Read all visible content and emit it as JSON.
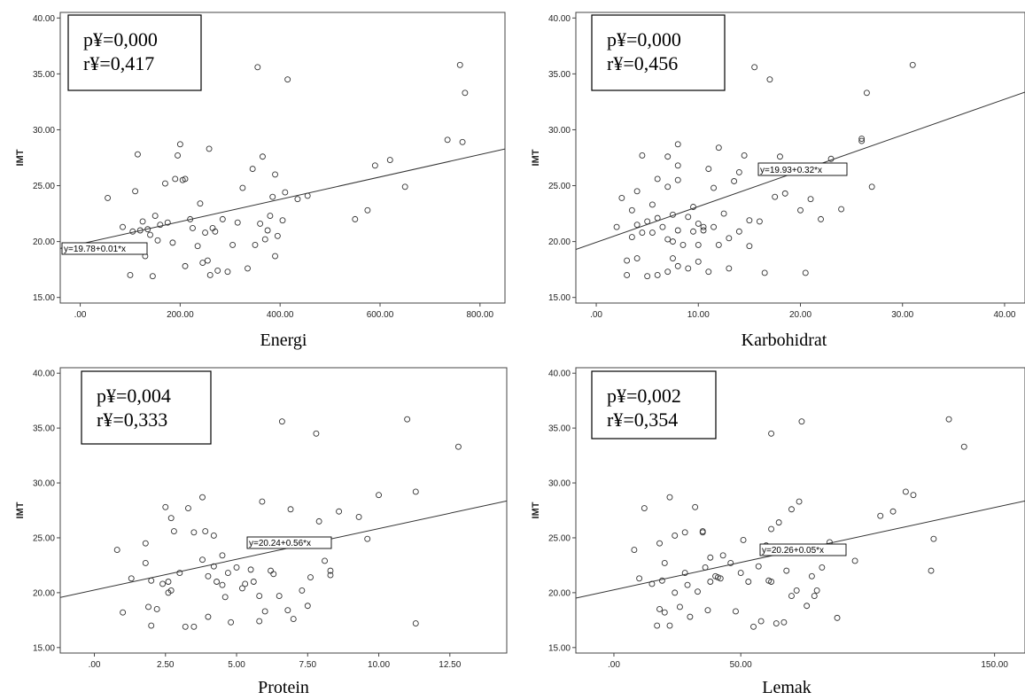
{
  "chart_data": [
    {
      "type": "scatter",
      "xlabel": "Energi",
      "ylabel": "IMT",
      "stat_p": "p¥=0,000",
      "stat_r": "r¥=0,417",
      "equation": "y=19.78+0.01*x",
      "fit": {
        "intercept": 19.78,
        "slope": 0.01
      },
      "xlim": [
        -40,
        850
      ],
      "ylim": [
        14.5,
        40.5
      ],
      "xticks": [
        0,
        200,
        400,
        600,
        800
      ],
      "xtick_labels": [
        ".00",
        "200.00",
        "400.00",
        "600.00",
        "800.00"
      ],
      "yticks": [
        15,
        20,
        25,
        30,
        35,
        40
      ],
      "ytick_labels": [
        "15.00",
        "20.00",
        "25.00",
        "30.00",
        "35.00",
        "40.00"
      ],
      "points": [
        [
          55,
          23.9
        ],
        [
          85,
          21.3
        ],
        [
          100,
          17
        ],
        [
          105,
          20.9
        ],
        [
          110,
          24.5
        ],
        [
          115,
          27.8
        ],
        [
          120,
          21
        ],
        [
          125,
          21.8
        ],
        [
          130,
          18.7
        ],
        [
          135,
          21.1
        ],
        [
          145,
          16.9
        ],
        [
          140,
          20.6
        ],
        [
          150,
          22.3
        ],
        [
          155,
          20.1
        ],
        [
          160,
          21.5
        ],
        [
          170,
          25.2
        ],
        [
          175,
          21.7
        ],
        [
          185,
          19.9
        ],
        [
          190,
          25.6
        ],
        [
          195,
          27.7
        ],
        [
          200,
          28.7
        ],
        [
          205,
          25.5
        ],
        [
          210,
          17.8
        ],
        [
          210,
          25.6
        ],
        [
          220,
          22
        ],
        [
          225,
          21.2
        ],
        [
          235,
          19.6
        ],
        [
          240,
          23.4
        ],
        [
          245,
          18.1
        ],
        [
          250,
          20.8
        ],
        [
          255,
          18.3
        ],
        [
          258,
          28.3
        ],
        [
          260,
          17
        ],
        [
          265,
          21.2
        ],
        [
          270,
          20.9
        ],
        [
          275,
          17.4
        ],
        [
          285,
          22
        ],
        [
          295,
          17.3
        ],
        [
          305,
          19.7
        ],
        [
          315,
          21.7
        ],
        [
          325,
          24.8
        ],
        [
          335,
          17.6
        ],
        [
          345,
          26.5
        ],
        [
          350,
          19.7
        ],
        [
          355,
          35.6
        ],
        [
          360,
          21.6
        ],
        [
          365,
          27.6
        ],
        [
          370,
          20.2
        ],
        [
          375,
          21
        ],
        [
          380,
          22.3
        ],
        [
          385,
          24
        ],
        [
          390,
          18.7
        ],
        [
          390,
          26
        ],
        [
          395,
          20.5
        ],
        [
          405,
          21.9
        ],
        [
          410,
          24.4
        ],
        [
          415,
          34.5
        ],
        [
          435,
          23.8
        ],
        [
          455,
          24.1
        ],
        [
          550,
          22
        ],
        [
          575,
          22.8
        ],
        [
          590,
          26.8
        ],
        [
          620,
          27.3
        ],
        [
          650,
          24.9
        ],
        [
          735,
          29.1
        ],
        [
          760,
          35.8
        ],
        [
          765,
          28.9
        ],
        [
          770,
          33.3
        ]
      ]
    },
    {
      "type": "scatter",
      "xlabel": "Karbohidrat",
      "ylabel": "IMT",
      "stat_p": "p¥=0,000",
      "stat_r": "r¥=0,456",
      "equation": "y=19.93+0.32*x",
      "fit": {
        "intercept": 19.93,
        "slope": 0.32
      },
      "xlim": [
        -2,
        42
      ],
      "ylim": [
        14.5,
        40.5
      ],
      "xticks": [
        0,
        10,
        20,
        30,
        40
      ],
      "xtick_labels": [
        ".00",
        "10.00",
        "20.00",
        "30.00",
        "40.00"
      ],
      "yticks": [
        15,
        20,
        25,
        30,
        35,
        40
      ],
      "ytick_labels": [
        "15.00",
        "20.00",
        "25.00",
        "30.00",
        "35.00",
        "40.00"
      ],
      "points": [
        [
          2,
          21.3
        ],
        [
          2.5,
          23.9
        ],
        [
          3,
          18.3
        ],
        [
          3,
          17
        ],
        [
          3.5,
          22.8
        ],
        [
          3.5,
          20.4
        ],
        [
          4,
          24.5
        ],
        [
          4,
          21.5
        ],
        [
          4,
          18.5
        ],
        [
          4.5,
          20.8
        ],
        [
          4.5,
          27.7
        ],
        [
          5,
          16.9
        ],
        [
          5,
          21.8
        ],
        [
          5.5,
          20.8
        ],
        [
          5.5,
          23.3
        ],
        [
          6,
          22.1
        ],
        [
          6,
          17
        ],
        [
          6,
          25.6
        ],
        [
          6.5,
          21.3
        ],
        [
          7,
          20.2
        ],
        [
          7,
          24.9
        ],
        [
          7,
          17.3
        ],
        [
          7,
          27.6
        ],
        [
          7.5,
          18.5
        ],
        [
          7.5,
          20
        ],
        [
          7.5,
          22.4
        ],
        [
          8,
          17.8
        ],
        [
          8,
          26.8
        ],
        [
          8,
          28.7
        ],
        [
          8,
          25.5
        ],
        [
          8,
          21
        ],
        [
          8.5,
          19.7
        ],
        [
          9,
          22.2
        ],
        [
          9,
          17.6
        ],
        [
          9.5,
          20.9
        ],
        [
          9.5,
          23.1
        ],
        [
          10,
          19.7
        ],
        [
          10,
          21.6
        ],
        [
          10,
          18.2
        ],
        [
          10.5,
          21
        ],
        [
          10.5,
          21.3
        ],
        [
          11,
          26.5
        ],
        [
          11,
          17.3
        ],
        [
          11.5,
          21.3
        ],
        [
          11.5,
          24.8
        ],
        [
          12,
          28.4
        ],
        [
          12,
          19.7
        ],
        [
          12.5,
          22.5
        ],
        [
          13,
          20.3
        ],
        [
          13,
          17.6
        ],
        [
          13.5,
          25.4
        ],
        [
          14,
          26.2
        ],
        [
          14,
          20.9
        ],
        [
          14.5,
          27.7
        ],
        [
          15,
          19.6
        ],
        [
          15,
          21.9
        ],
        [
          15.5,
          35.6
        ],
        [
          16,
          21.8
        ],
        [
          16.5,
          17.2
        ],
        [
          17,
          34.5
        ],
        [
          17.5,
          24
        ],
        [
          18,
          27.6
        ],
        [
          18.5,
          24.3
        ],
        [
          20,
          22.8
        ],
        [
          20.5,
          17.2
        ],
        [
          21,
          23.8
        ],
        [
          22,
          22
        ],
        [
          23,
          27.4
        ],
        [
          24,
          22.9
        ],
        [
          26,
          29.2
        ],
        [
          26,
          29
        ],
        [
          26.5,
          33.3
        ],
        [
          27,
          24.9
        ],
        [
          31,
          35.8
        ]
      ]
    },
    {
      "type": "scatter",
      "xlabel": "Protein",
      "ylabel": "IMT",
      "stat_p": "p¥=0,004",
      "stat_r": "r¥=0,333",
      "equation": "y=20.24+0.56*x",
      "fit": {
        "intercept": 20.24,
        "slope": 0.56
      },
      "xlim": [
        -1.2,
        14.5
      ],
      "ylim": [
        14.5,
        40.5
      ],
      "xticks": [
        0,
        2.5,
        5,
        7.5,
        10,
        12.5
      ],
      "xtick_labels": [
        ".00",
        "2.50",
        "5.00",
        "7.50",
        "10.00",
        "12.50"
      ],
      "yticks": [
        15,
        20,
        25,
        30,
        35,
        40
      ],
      "ytick_labels": [
        "15.00",
        "20.00",
        "25.00",
        "30.00",
        "35.00",
        "40.00"
      ],
      "points": [
        [
          0.8,
          23.9
        ],
        [
          1,
          18.2
        ],
        [
          1.3,
          21.3
        ],
        [
          1.8,
          24.5
        ],
        [
          1.8,
          22.7
        ],
        [
          1.9,
          18.7
        ],
        [
          2,
          17
        ],
        [
          2,
          21.1
        ],
        [
          2.2,
          18.5
        ],
        [
          2.4,
          20.8
        ],
        [
          2.5,
          27.8
        ],
        [
          2.6,
          21
        ],
        [
          2.6,
          20
        ],
        [
          2.7,
          20.2
        ],
        [
          2.7,
          26.8
        ],
        [
          2.8,
          25.6
        ],
        [
          3,
          21.8
        ],
        [
          3.2,
          16.9
        ],
        [
          3.3,
          27.7
        ],
        [
          3.5,
          16.9
        ],
        [
          3.5,
          25.5
        ],
        [
          3.8,
          28.7
        ],
        [
          3.8,
          23
        ],
        [
          3.9,
          25.6
        ],
        [
          4,
          21.5
        ],
        [
          4,
          17.8
        ],
        [
          4.2,
          22.4
        ],
        [
          4.2,
          25.2
        ],
        [
          4.3,
          21
        ],
        [
          4.5,
          23.4
        ],
        [
          4.5,
          20.7
        ],
        [
          4.6,
          19.6
        ],
        [
          4.7,
          21.8
        ],
        [
          4.8,
          17.3
        ],
        [
          5,
          22.3
        ],
        [
          5.2,
          20.4
        ],
        [
          5.3,
          20.8
        ],
        [
          5.5,
          22.1
        ],
        [
          5.6,
          21
        ],
        [
          5.8,
          17.4
        ],
        [
          5.8,
          19.7
        ],
        [
          5.9,
          28.3
        ],
        [
          6,
          18.3
        ],
        [
          6.2,
          22
        ],
        [
          6.3,
          21.7
        ],
        [
          6.5,
          19.7
        ],
        [
          6.6,
          35.6
        ],
        [
          6.8,
          18.4
        ],
        [
          6.9,
          27.6
        ],
        [
          7,
          17.6
        ],
        [
          7.3,
          20.2
        ],
        [
          7.5,
          18.8
        ],
        [
          7.6,
          21.4
        ],
        [
          7.8,
          34.5
        ],
        [
          7.9,
          26.5
        ],
        [
          8.1,
          22.9
        ],
        [
          8.3,
          22
        ],
        [
          8.3,
          21.6
        ],
        [
          8.6,
          27.4
        ],
        [
          9.3,
          26.9
        ],
        [
          9.6,
          24.9
        ],
        [
          10,
          28.9
        ],
        [
          11,
          35.8
        ],
        [
          11.3,
          29.2
        ],
        [
          11.3,
          17.2
        ],
        [
          12.8,
          33.3
        ]
      ]
    },
    {
      "type": "scatter",
      "xlabel": "Lemak",
      "ylabel": "IMT",
      "stat_p": "p¥=0,002",
      "stat_r": "r¥=0,354",
      "equation": "y=20.26+0.05*x",
      "fit": {
        "intercept": 20.26,
        "slope": 0.05
      },
      "xlim": [
        -15,
        162
      ],
      "ylim": [
        14.5,
        40.5
      ],
      "xticks": [
        0,
        50,
        150
      ],
      "xtick_labels": [
        ".00",
        "50.00",
        "150.00"
      ],
      "yticks": [
        15,
        20,
        25,
        30,
        35,
        40
      ],
      "ytick_labels": [
        "15.00",
        "20.00",
        "25.00",
        "30.00",
        "35.00",
        "40.00"
      ],
      "points": [
        [
          8,
          23.9
        ],
        [
          10,
          21.3
        ],
        [
          12,
          27.7
        ],
        [
          15,
          20.8
        ],
        [
          17,
          17
        ],
        [
          18,
          18.5
        ],
        [
          18,
          24.5
        ],
        [
          19,
          21.1
        ],
        [
          20,
          22.7
        ],
        [
          20,
          18.2
        ],
        [
          22,
          17
        ],
        [
          22,
          28.7
        ],
        [
          24,
          25.2
        ],
        [
          24,
          20
        ],
        [
          26,
          18.7
        ],
        [
          28,
          21.8
        ],
        [
          28,
          25.5
        ],
        [
          29,
          20.7
        ],
        [
          30,
          17.8
        ],
        [
          32,
          27.8
        ],
        [
          33,
          20.1
        ],
        [
          35,
          25.6
        ],
        [
          35,
          25.5
        ],
        [
          36,
          22.3
        ],
        [
          37,
          18.4
        ],
        [
          38,
          21
        ],
        [
          38,
          23.2
        ],
        [
          40,
          21.5
        ],
        [
          41,
          21.4
        ],
        [
          42,
          21.3
        ],
        [
          43,
          23.4
        ],
        [
          46,
          22.7
        ],
        [
          48,
          18.3
        ],
        [
          50,
          21.8
        ],
        [
          51,
          24.8
        ],
        [
          53,
          21
        ],
        [
          55,
          16.9
        ],
        [
          57,
          22.4
        ],
        [
          58,
          17.4
        ],
        [
          60,
          24.3
        ],
        [
          61,
          21.1
        ],
        [
          62,
          34.5
        ],
        [
          62,
          21
        ],
        [
          62,
          25.8
        ],
        [
          64,
          17.2
        ],
        [
          65,
          26.4
        ],
        [
          67,
          17.3
        ],
        [
          68,
          22
        ],
        [
          70,
          19.7
        ],
        [
          70,
          27.6
        ],
        [
          72,
          20.2
        ],
        [
          73,
          28.3
        ],
        [
          74,
          35.6
        ],
        [
          76,
          18.8
        ],
        [
          78,
          21.5
        ],
        [
          79,
          19.7
        ],
        [
          80,
          20.2
        ],
        [
          82,
          22.3
        ],
        [
          85,
          24.6
        ],
        [
          88,
          17.7
        ],
        [
          95,
          22.9
        ],
        [
          105,
          27
        ],
        [
          110,
          27.4
        ],
        [
          115,
          29.2
        ],
        [
          118,
          28.9
        ],
        [
          126,
          24.9
        ],
        [
          125,
          22
        ],
        [
          132,
          35.8
        ],
        [
          138,
          33.3
        ]
      ]
    }
  ]
}
